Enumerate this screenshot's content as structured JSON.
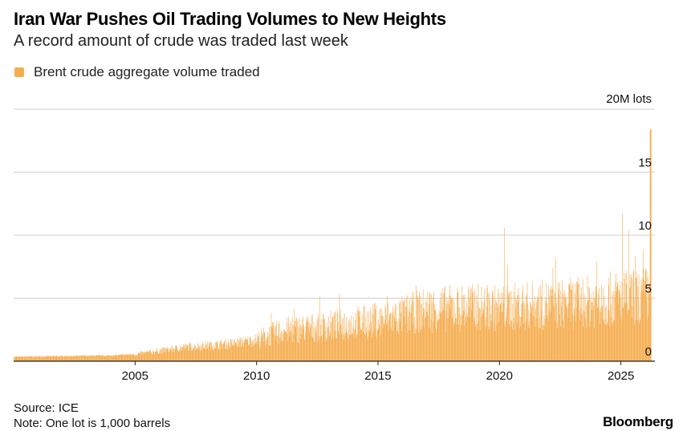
{
  "chart_data": {
    "type": "bar",
    "title": "Iran War Pushes Oil Trading Volumes to New Heights",
    "subtitle": "A record amount of crude was traded last week",
    "series_name": "Brent crude aggregate volume traded",
    "y_unit_label": "20M lots",
    "yticks": [
      "15",
      "10",
      "5",
      "0"
    ],
    "ytick_values": [
      15,
      10,
      5,
      0
    ],
    "ylim": [
      0,
      20
    ],
    "xlim": [
      2000.0,
      2026.4
    ],
    "xticks": [
      "2005",
      "2010",
      "2015",
      "2020",
      "2025"
    ],
    "xtick_values": [
      2005,
      2010,
      2015,
      2020,
      2025
    ],
    "frequency": "weekly",
    "trend_points": [
      {
        "year": 2000.0,
        "value": 0.35
      },
      {
        "year": 2004.0,
        "value": 0.45
      },
      {
        "year": 2005.0,
        "value": 0.55
      },
      {
        "year": 2007.0,
        "value": 1.1
      },
      {
        "year": 2009.0,
        "value": 1.4
      },
      {
        "year": 2010.0,
        "value": 1.7
      },
      {
        "year": 2011.0,
        "value": 2.4
      },
      {
        "year": 2013.0,
        "value": 2.8
      },
      {
        "year": 2015.0,
        "value": 3.2
      },
      {
        "year": 2016.0,
        "value": 3.6
      },
      {
        "year": 2017.0,
        "value": 4.1
      },
      {
        "year": 2019.0,
        "value": 4.3
      },
      {
        "year": 2020.0,
        "value": 4.2
      },
      {
        "year": 2021.0,
        "value": 4.4
      },
      {
        "year": 2023.0,
        "value": 4.6
      },
      {
        "year": 2025.0,
        "value": 5.0
      },
      {
        "year": 2026.2,
        "value": 5.2
      }
    ],
    "notable_spikes": [
      {
        "year": 2020.2,
        "value": 10.6
      },
      {
        "year": 2022.2,
        "value": 7.4
      },
      {
        "year": 2024.0,
        "value": 7.9
      },
      {
        "year": 2025.05,
        "value": 11.7
      },
      {
        "year": 2025.3,
        "value": 10.4
      },
      {
        "year": 2025.9,
        "value": 8.9
      },
      {
        "year": 2026.2,
        "value": 18.4
      }
    ]
  },
  "colors": {
    "bar": "#f5ad4f",
    "grid": "#cfcfcf",
    "axis": "#222222"
  },
  "footer": {
    "source": "Source: ICE",
    "note": "Note: One lot is 1,000 barrels",
    "logo": "Bloomberg"
  }
}
